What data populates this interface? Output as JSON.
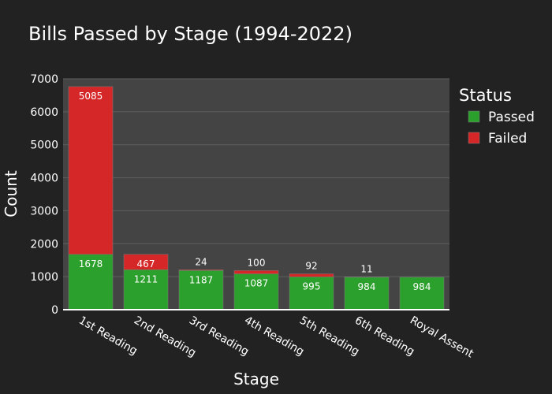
{
  "chart_data": {
    "type": "bar",
    "barmode": "stack",
    "title": "Bills Passed by Stage (1994-2022)",
    "xlabel": "Stage",
    "ylabel": "Count",
    "categories": [
      "1st Reading",
      "2nd Reading",
      "3rd Reading",
      "4th Reading",
      "5th Reading",
      "6th Reading",
      "Royal Assent"
    ],
    "ylim": [
      0,
      7000
    ],
    "yticks": [
      0,
      1000,
      2000,
      3000,
      4000,
      5000,
      6000,
      7000
    ],
    "grid": true,
    "legend": {
      "title": "Status",
      "placement": "right"
    },
    "series": [
      {
        "name": "Passed",
        "color": "#2ca02c",
        "values": [
          1678,
          1211,
          1187,
          1087,
          995,
          984,
          984
        ]
      },
      {
        "name": "Failed",
        "color": "#d62728",
        "values": [
          5085,
          467,
          24,
          100,
          92,
          11,
          null
        ]
      }
    ]
  },
  "colors": {
    "page_background": "#222222",
    "plot_background": "#444444",
    "gridline": "#5e5e5e",
    "bar_outline": "#7a7a7a"
  }
}
